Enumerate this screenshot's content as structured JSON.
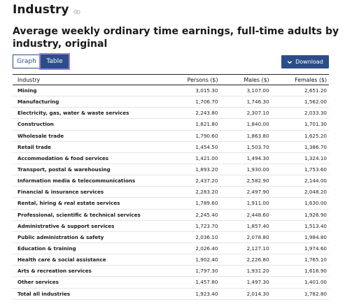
{
  "page": {
    "title": "Industry",
    "subtitle": "Average weekly ordinary time earnings, full-time adults by industry, original"
  },
  "view_tabs": {
    "graph": "Graph",
    "table": "Table",
    "selected": "table"
  },
  "download": {
    "label": "Download"
  },
  "table": {
    "headers": [
      "Industry",
      "Persons ($)",
      "Males ($)",
      "Females ($)"
    ],
    "rows": [
      [
        "Mining",
        "3,015.30",
        "3,107.00",
        "2,651.20"
      ],
      [
        "Manufacturing",
        "1,706.70",
        "1,746.30",
        "1,562.00"
      ],
      [
        "Electricity, gas, water & waste services",
        "2,243.80",
        "2,307.10",
        "2,033.30"
      ],
      [
        "Construction",
        "1,821.80",
        "1,840.00",
        "1,701.30"
      ],
      [
        "Wholesale trade",
        "1,790.60",
        "1,863.80",
        "1,625.20"
      ],
      [
        "Retail trade",
        "1,454.50",
        "1,503.70",
        "1,386.70"
      ],
      [
        "Accommodation & food services",
        "1,421.00",
        "1,494.30",
        "1,324.10"
      ],
      [
        "Transport, postal & warehousing",
        "1,893.20",
        "1,930.00",
        "1,753.60"
      ],
      [
        "Information media & telecommunications",
        "2,437.20",
        "2,582.90",
        "2,144.00"
      ],
      [
        "Financial & insurance services",
        "2,283.20",
        "2,497.90",
        "2,048.20"
      ],
      [
        "Rental, hiring & real estate services",
        "1,789.60",
        "1,911.00",
        "1,630.00"
      ],
      [
        "Professional, scientific & technical services",
        "2,245.40",
        "2,448.60",
        "1,926.90"
      ],
      [
        "Administrative & support services",
        "1,723.70",
        "1,857.40",
        "1,513.40"
      ],
      [
        "Public administration & safety",
        "2,036.10",
        "2,078.80",
        "1,984.80"
      ],
      [
        "Education & training",
        "2,026.40",
        "2,127.10",
        "1,974.60"
      ],
      [
        "Health care & social assistance",
        "1,902.40",
        "2,226.80",
        "1,765.10"
      ],
      [
        "Arts & recreation services",
        "1,797.30",
        "1,931.20",
        "1,616.90"
      ],
      [
        "Other services",
        "1,457.80",
        "1,497.30",
        "1,401.00"
      ],
      [
        "Total all industries",
        "1,923.40",
        "2,014.30",
        "1,782.80"
      ]
    ]
  },
  "colors": {
    "accent": "#2b4e88",
    "focus_outline": "#9a7fe0"
  },
  "icons": {
    "title_link": "link-icon",
    "download": "chevron-down-icon"
  }
}
